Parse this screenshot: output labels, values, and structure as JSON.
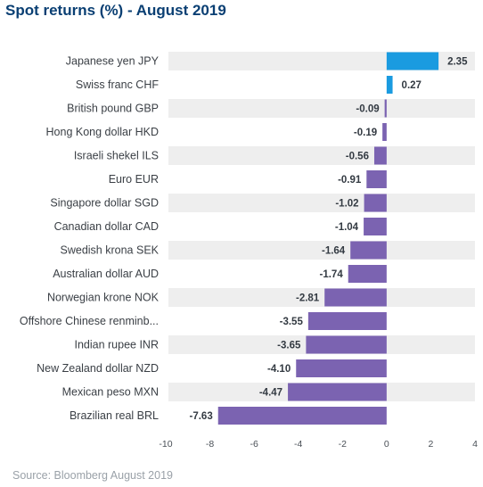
{
  "title": "Spot returns (%) - August 2019",
  "source": "Source: Bloomberg August 2019",
  "colors": {
    "positive": "#1a9be0",
    "negative": "#7b63b1",
    "band": "#eeeeee",
    "title": "#0a3f73"
  },
  "chart_data": {
    "type": "bar",
    "orientation": "horizontal",
    "title": "Spot returns (%) - August 2019",
    "categories": [
      "Japanese yen JPY",
      "Swiss franc CHF",
      "British pound GBP",
      "Hong Kong dollar HKD",
      "Israeli shekel ILS",
      "Euro EUR",
      "Singapore dollar SGD",
      "Canadian dollar CAD",
      "Swedish krona SEK",
      "Australian dollar AUD",
      "Norwegian krone NOK",
      "Offshore Chinese renminb...",
      "Indian rupee INR",
      "New Zealand dollar NZD",
      "Mexican peso MXN",
      "Brazilian real BRL"
    ],
    "values": [
      2.35,
      0.27,
      -0.09,
      -0.19,
      -0.56,
      -0.91,
      -1.02,
      -1.04,
      -1.64,
      -1.74,
      -2.81,
      -3.55,
      -3.65,
      -4.1,
      -4.47,
      -7.63
    ],
    "value_labels": [
      "2.35",
      "0.27",
      "-0.09",
      "-0.19",
      "-0.56",
      "-0.91",
      "-1.02",
      "-1.04",
      "-1.64",
      "-1.74",
      "-2.81",
      "-3.55",
      "-3.65",
      "-4.10",
      "-4.47",
      "-7.63"
    ],
    "xlim": [
      -10,
      4
    ],
    "xticks": [
      -10,
      -8,
      -6,
      -4,
      -2,
      0,
      2,
      4
    ],
    "xlabel": "",
    "ylabel": "",
    "grid": false,
    "legend": "none"
  }
}
